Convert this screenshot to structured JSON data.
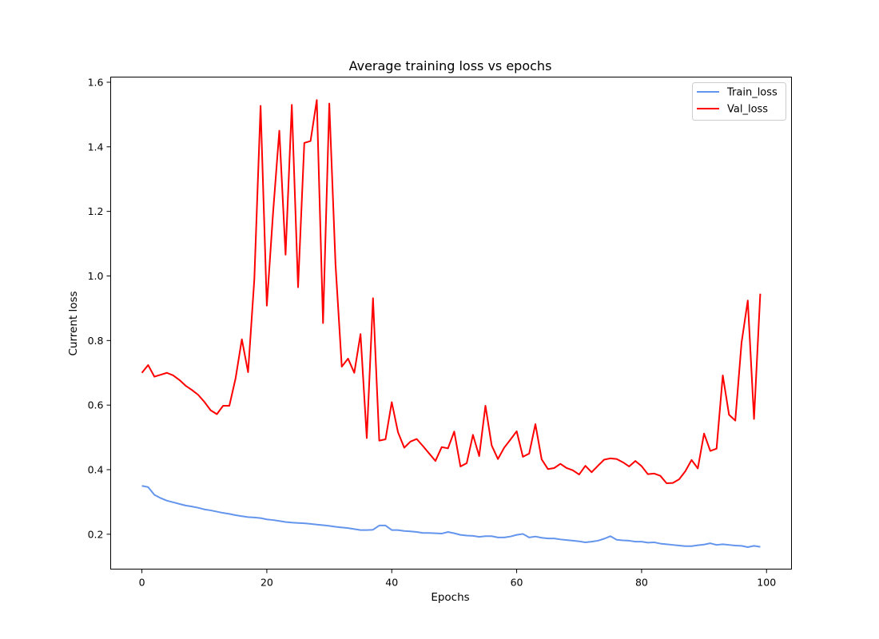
{
  "chart_data": {
    "type": "line",
    "title": "Average training loss vs epochs",
    "xlabel": "Epochs",
    "ylabel": "Current loss",
    "xlim": [
      -5,
      104
    ],
    "ylim": [
      0.092,
      1.616
    ],
    "xticks": [
      0,
      20,
      40,
      60,
      80,
      100
    ],
    "yticks": [
      0.2,
      0.4,
      0.6,
      0.8,
      1.0,
      1.2,
      1.4,
      1.6
    ],
    "ytick_labels": [
      "0.2",
      "0.4",
      "0.6",
      "0.8",
      "1.0",
      "1.2",
      "1.4",
      "1.6"
    ],
    "grid": false,
    "legend_position": "top-right",
    "x": [
      0,
      1,
      2,
      3,
      4,
      5,
      6,
      7,
      8,
      9,
      10,
      11,
      12,
      13,
      14,
      15,
      16,
      17,
      18,
      19,
      20,
      21,
      22,
      23,
      24,
      25,
      26,
      27,
      28,
      29,
      30,
      31,
      32,
      33,
      34,
      35,
      36,
      37,
      38,
      39,
      40,
      41,
      42,
      43,
      44,
      45,
      46,
      47,
      48,
      49,
      50,
      51,
      52,
      53,
      54,
      55,
      56,
      57,
      58,
      59,
      60,
      61,
      62,
      63,
      64,
      65,
      66,
      67,
      68,
      69,
      70,
      71,
      72,
      73,
      74,
      75,
      76,
      77,
      78,
      79,
      80,
      81,
      82,
      83,
      84,
      85,
      86,
      87,
      88,
      89,
      90,
      91,
      92,
      93,
      94,
      95,
      96,
      97,
      98,
      99
    ],
    "series": [
      {
        "name": "Train_loss",
        "color": "#6495ed",
        "values": [
          0.35,
          0.346,
          0.322,
          0.312,
          0.304,
          0.299,
          0.294,
          0.289,
          0.286,
          0.282,
          0.277,
          0.274,
          0.27,
          0.266,
          0.263,
          0.259,
          0.256,
          0.253,
          0.252,
          0.25,
          0.246,
          0.244,
          0.241,
          0.238,
          0.236,
          0.235,
          0.234,
          0.232,
          0.23,
          0.228,
          0.226,
          0.223,
          0.221,
          0.219,
          0.216,
          0.213,
          0.213,
          0.214,
          0.227,
          0.227,
          0.213,
          0.213,
          0.21,
          0.209,
          0.207,
          0.204,
          0.204,
          0.203,
          0.202,
          0.207,
          0.203,
          0.198,
          0.196,
          0.195,
          0.192,
          0.194,
          0.194,
          0.19,
          0.19,
          0.193,
          0.198,
          0.201,
          0.19,
          0.193,
          0.189,
          0.187,
          0.187,
          0.184,
          0.182,
          0.18,
          0.178,
          0.175,
          0.177,
          0.18,
          0.186,
          0.194,
          0.183,
          0.181,
          0.18,
          0.177,
          0.177,
          0.174,
          0.175,
          0.171,
          0.169,
          0.167,
          0.165,
          0.163,
          0.163,
          0.166,
          0.168,
          0.172,
          0.167,
          0.169,
          0.167,
          0.165,
          0.164,
          0.16,
          0.164,
          0.161
        ]
      },
      {
        "name": "Val_loss",
        "color": "#ff0000",
        "values": [
          0.7,
          0.724,
          0.688,
          0.694,
          0.7,
          0.692,
          0.678,
          0.66,
          0.647,
          0.632,
          0.61,
          0.584,
          0.572,
          0.598,
          0.598,
          0.683,
          0.804,
          0.702,
          0.99,
          1.527,
          0.908,
          1.196,
          1.45,
          1.066,
          1.53,
          0.965,
          1.412,
          1.418,
          1.545,
          0.854,
          1.534,
          1.035,
          0.719,
          0.744,
          0.7,
          0.82,
          0.498,
          0.931,
          0.49,
          0.494,
          0.609,
          0.516,
          0.468,
          0.487,
          0.495,
          0.473,
          0.45,
          0.427,
          0.47,
          0.466,
          0.518,
          0.41,
          0.42,
          0.508,
          0.442,
          0.598,
          0.475,
          0.433,
          0.468,
          0.493,
          0.519,
          0.44,
          0.45,
          0.541,
          0.432,
          0.402,
          0.405,
          0.418,
          0.405,
          0.398,
          0.385,
          0.412,
          0.392,
          0.412,
          0.431,
          0.435,
          0.433,
          0.423,
          0.41,
          0.427,
          0.411,
          0.386,
          0.388,
          0.381,
          0.358,
          0.359,
          0.37,
          0.395,
          0.43,
          0.404,
          0.512,
          0.458,
          0.465,
          0.692,
          0.57,
          0.552,
          0.793,
          0.924,
          0.557,
          0.945
        ]
      }
    ]
  }
}
